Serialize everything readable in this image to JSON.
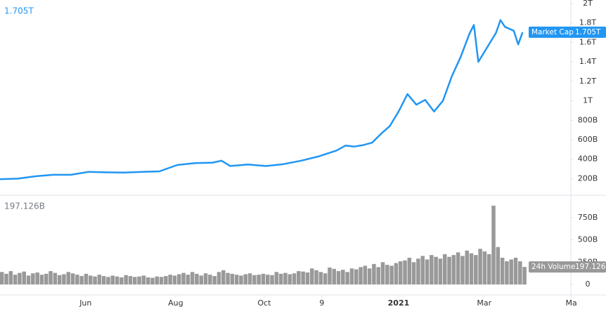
{
  "chart_data": [
    {
      "type": "line",
      "series": [
        {
          "name": "Market Cap",
          "color": "#2196f3",
          "last_label": "1.705T",
          "x": [
            0,
            12,
            24,
            36,
            48,
            60,
            72,
            84,
            96,
            108,
            120,
            132,
            144,
            150,
            156,
            168,
            180,
            192,
            204,
            216,
            228,
            234,
            240,
            246,
            252,
            258,
            264,
            270,
            276,
            282,
            288,
            294,
            300,
            306,
            312,
            318,
            321,
            324,
            330,
            336,
            339,
            342,
            348,
            351,
            354
          ],
          "values": [
            195,
            200,
            225,
            240,
            240,
            270,
            265,
            262,
            270,
            275,
            340,
            360,
            365,
            385,
            330,
            345,
            330,
            350,
            385,
            430,
            490,
            540,
            530,
            545,
            570,
            660,
            740,
            890,
            1070,
            960,
            1010,
            890,
            1000,
            1250,
            1450,
            1690,
            1780,
            1400,
            1550,
            1700,
            1830,
            1760,
            1720,
            1580,
            1705
          ]
        }
      ],
      "xlim": [
        0,
        410.5
      ],
      "ylim": [
        30,
        2036
      ],
      "yticks": [
        {
          "value": 200,
          "label": "200B"
        },
        {
          "value": 400,
          "label": "400B"
        },
        {
          "value": 600,
          "label": "600B"
        },
        {
          "value": 800,
          "label": "800B"
        },
        {
          "value": 1000,
          "label": "1T"
        },
        {
          "value": 1200,
          "label": "1.2T"
        },
        {
          "value": 1400,
          "label": "1.4T"
        },
        {
          "value": 1600,
          "label": "1.6T"
        },
        {
          "value": 1800,
          "label": "1.8T"
        },
        {
          "value": 2000,
          "label": "2T"
        }
      ]
    },
    {
      "type": "bar",
      "series": [
        {
          "name": "24h Volume",
          "color": "#999999",
          "last_label": "197.126B",
          "x": [
            0,
            3,
            6,
            9,
            12,
            15,
            18,
            21,
            24,
            27,
            30,
            33,
            36,
            39,
            42,
            45,
            48,
            51,
            54,
            57,
            60,
            63,
            66,
            69,
            72,
            75,
            78,
            81,
            84,
            87,
            90,
            93,
            96,
            99,
            102,
            105,
            108,
            111,
            114,
            117,
            120,
            123,
            126,
            129,
            132,
            135,
            138,
            141,
            144,
            147,
            150,
            153,
            156,
            159,
            162,
            165,
            168,
            171,
            174,
            177,
            180,
            183,
            186,
            189,
            192,
            195,
            198,
            201,
            204,
            207,
            210,
            213,
            216,
            219,
            222,
            225,
            228,
            231,
            234,
            237,
            240,
            243,
            246,
            249,
            252,
            255,
            258,
            261,
            264,
            267,
            270,
            273,
            276,
            279,
            282,
            285,
            288,
            291,
            294,
            297,
            300,
            303,
            306,
            309,
            312,
            315,
            318,
            321,
            324,
            327,
            330,
            333,
            336,
            339,
            342,
            345,
            348,
            351,
            354
          ],
          "values": [
            140,
            120,
            150,
            110,
            130,
            145,
            100,
            125,
            135,
            110,
            120,
            150,
            130,
            105,
            115,
            140,
            125,
            110,
            95,
            120,
            100,
            90,
            110,
            95,
            85,
            100,
            90,
            80,
            105,
            95,
            85,
            90,
            100,
            80,
            75,
            90,
            85,
            95,
            110,
            100,
            115,
            130,
            110,
            140,
            120,
            100,
            125,
            110,
            95,
            140,
            160,
            130,
            120,
            110,
            100,
            115,
            125,
            105,
            110,
            120,
            110,
            105,
            140,
            120,
            130,
            115,
            125,
            150,
            145,
            135,
            180,
            160,
            140,
            125,
            190,
            175,
            150,
            165,
            140,
            180,
            170,
            195,
            210,
            180,
            230,
            195,
            250,
            220,
            210,
            240,
            260,
            270,
            300,
            250,
            290,
            320,
            280,
            330,
            310,
            290,
            340,
            310,
            330,
            360,
            320,
            380,
            350,
            330,
            400,
            370,
            340,
            883,
            420,
            300,
            260,
            280,
            300,
            260,
            197
          ]
        }
      ],
      "xlim": [
        0,
        410.5
      ],
      "ylim": [
        -117,
        1000
      ],
      "yticks": [
        0,
        {
          "value": 250,
          "label": "250B"
        },
        {
          "value": 500,
          "label": "500B"
        },
        {
          "value": 750,
          "label": "750B"
        }
      ],
      "xticks": [
        {
          "value": 58,
          "label": "Jun"
        },
        {
          "value": 119,
          "label": "Aug"
        },
        {
          "value": 179,
          "label": "Oct"
        },
        {
          "value": 218,
          "label": "9"
        },
        {
          "value": 270,
          "label": "2021"
        },
        {
          "value": 328,
          "label": "Mar"
        },
        {
          "value": 387,
          "label": "Ma"
        }
      ]
    }
  ]
}
